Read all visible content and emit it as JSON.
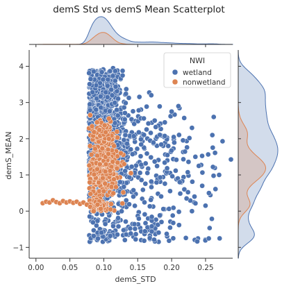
{
  "chart_data": {
    "type": "scatter",
    "title": "demS Std vs demS Mean Scatterplot",
    "xlabel": "demS_STD",
    "ylabel": "demS_MEAN",
    "xlim": [
      -0.01,
      0.29
    ],
    "ylim": [
      -1.3,
      4.45
    ],
    "xticks": [
      "0.00",
      "0.05",
      "0.10",
      "0.15",
      "0.20",
      "0.25"
    ],
    "xtick_values": [
      0.0,
      0.05,
      0.1,
      0.15,
      0.2,
      0.25
    ],
    "yticks": [
      "−1",
      "0",
      "1",
      "2",
      "3",
      "4"
    ],
    "ytick_values": [
      -1,
      0,
      1,
      2,
      3,
      4
    ],
    "grid": false,
    "legend": {
      "title": "NWI",
      "placement": "top-right"
    },
    "marginals": {
      "top": "kde of demS_STD by NWI",
      "right": "kde of demS_MEAN by NWI"
    },
    "series": [
      {
        "name": "wetland",
        "color": "#4c72b0",
        "clusters": [
          {
            "cx": 0.095,
            "cy": 1.8,
            "sx": 0.012,
            "sy": 1.0,
            "n": 900
          },
          {
            "cx": 0.105,
            "cy": 3.3,
            "sx": 0.012,
            "sy": 0.35,
            "n": 250
          },
          {
            "cx": 0.12,
            "cy": 1.5,
            "sx": 0.022,
            "sy": 0.9,
            "n": 300
          },
          {
            "cx": 0.17,
            "cy": 1.3,
            "sx": 0.035,
            "sy": 1.0,
            "n": 120
          },
          {
            "cx": 0.1,
            "cy": -0.7,
            "sx": 0.012,
            "sy": 0.08,
            "n": 60
          },
          {
            "cx": 0.16,
            "cy": -0.5,
            "sx": 0.02,
            "sy": 0.15,
            "n": 40
          },
          {
            "cx": 0.21,
            "cy": 0.6,
            "sx": 0.035,
            "sy": 1.0,
            "n": 70
          }
        ],
        "points": [
          [
            0.275,
            1.93
          ],
          [
            0.27,
            1.0
          ],
          [
            0.26,
            2.1
          ],
          [
            0.255,
            0.5
          ],
          [
            0.25,
            0.15
          ],
          [
            0.262,
            2.6
          ],
          [
            0.245,
            0.7
          ],
          [
            0.235,
            1.5
          ],
          [
            0.23,
            2.3
          ],
          [
            0.222,
            0.35
          ],
          [
            0.21,
            2.9
          ],
          [
            0.2,
            2.75
          ],
          [
            0.195,
            1.8
          ],
          [
            0.185,
            -0.3
          ],
          [
            0.23,
            0.0
          ],
          [
            0.212,
            0.8
          ],
          [
            0.17,
            3.2
          ],
          [
            0.175,
            2.5
          ],
          [
            0.19,
            2.45
          ],
          [
            0.24,
            1.25
          ]
        ]
      },
      {
        "name": "nonwetland",
        "color": "#dd8452",
        "clusters": [
          {
            "cx": 0.1,
            "cy": 1.15,
            "sx": 0.01,
            "sy": 0.35,
            "n": 380
          },
          {
            "cx": 0.1,
            "cy": 2.15,
            "sx": 0.01,
            "sy": 0.2,
            "n": 70
          },
          {
            "cx": 0.095,
            "cy": 0.15,
            "sx": 0.01,
            "sy": 0.1,
            "n": 60
          }
        ],
        "points": [
          [
            0.01,
            0.22
          ],
          [
            0.015,
            0.26
          ],
          [
            0.02,
            0.24
          ],
          [
            0.025,
            0.3
          ],
          [
            0.03,
            0.25
          ],
          [
            0.035,
            0.22
          ],
          [
            0.04,
            0.28
          ],
          [
            0.045,
            0.24
          ],
          [
            0.05,
            0.27
          ],
          [
            0.055,
            0.23
          ],
          [
            0.06,
            0.26
          ],
          [
            0.065,
            0.2
          ],
          [
            0.07,
            0.24
          ],
          [
            0.075,
            0.18
          ],
          [
            0.08,
            0.12
          ],
          [
            0.085,
            0.05
          ],
          [
            0.08,
            2.65
          ],
          [
            0.09,
            2.45
          ],
          [
            0.115,
            1.8
          ],
          [
            0.13,
            1.3
          ],
          [
            0.125,
            1.6
          ],
          [
            0.14,
            1.05
          ],
          [
            0.1,
            0.55
          ],
          [
            0.085,
            0.0
          ],
          [
            0.11,
            0.05
          ]
        ]
      }
    ]
  }
}
